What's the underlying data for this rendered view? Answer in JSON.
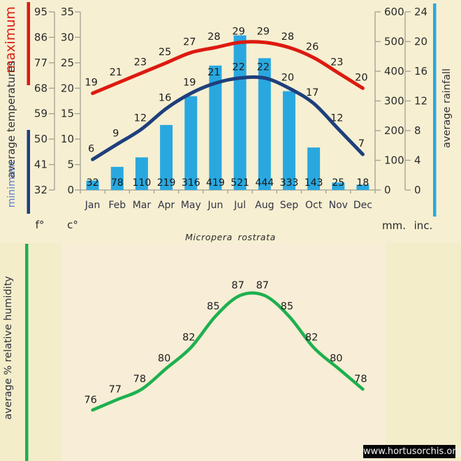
{
  "title": "Micropera rostrata",
  "watermark": "www.hortusorchis.org",
  "labels": {
    "maximum": "maximum",
    "average_temperatures": "average temperatures",
    "minimum": "minimum",
    "average_rainfall": "average rainfall",
    "humidity": "average % relative humidity",
    "fahrenheit_unit": "f°",
    "celsius_unit": "c°",
    "millimeters_unit": "mm.",
    "inches_unit": "inc."
  },
  "colors": {
    "background": "#f3edca",
    "top_panel": "#f6efd2",
    "humidity_panel": "#f8edd6",
    "max_line": "#dd1a10",
    "min_line": "#1e3f7d",
    "rain_bar": "#29a8e0",
    "humidity_line": "#1db04f",
    "axis": "#a29f93",
    "dark_text": "#2e2e38",
    "min_label_text": "#5b7fc4",
    "watermark_bg": "#060606",
    "watermark_text": "#f2f2f2"
  },
  "chart_data": [
    {
      "type": "line",
      "title": "average temperatures",
      "categories": [
        "Jan",
        "Feb",
        "Mar",
        "Apr",
        "May",
        "Jun",
        "Jul",
        "Aug",
        "Sep",
        "Oct",
        "Nov",
        "Dec"
      ],
      "series": [
        {
          "name": "maximum",
          "color_key": "max_line",
          "values": [
            19,
            21,
            23,
            25,
            27,
            28,
            29,
            29,
            28,
            26,
            23,
            20
          ]
        },
        {
          "name": "minimum",
          "color_key": "min_line",
          "values": [
            6,
            9,
            12,
            16,
            19,
            21,
            22,
            22,
            20,
            17,
            12,
            7
          ]
        }
      ],
      "ylim": [
        0,
        35
      ],
      "left_axis_celsius": [
        35,
        30,
        25,
        20,
        15,
        10,
        5,
        0
      ],
      "left_axis_fahrenheit": [
        95,
        86,
        77,
        68,
        59,
        50,
        41,
        32
      ],
      "legend_position": "left-rotated",
      "grid": false
    },
    {
      "type": "bar",
      "title": "average rainfall",
      "categories": [
        "Jan",
        "Feb",
        "Mar",
        "Apr",
        "May",
        "Jun",
        "Jul",
        "Aug",
        "Sep",
        "Oct",
        "Nov",
        "Dec"
      ],
      "values": [
        32,
        78,
        110,
        219,
        316,
        419,
        521,
        444,
        333,
        143,
        25,
        18
      ],
      "ylim": [
        0,
        600
      ],
      "right_axis_mm": [
        600,
        500,
        400,
        300,
        200,
        100,
        0
      ],
      "right_axis_inches": [
        24,
        20,
        16,
        12,
        8,
        4,
        0
      ],
      "legend_position": "right-rotated",
      "grid": false
    },
    {
      "type": "line",
      "title": "average % relative humidity",
      "categories": [
        "Jan",
        "Feb",
        "Mar",
        "Apr",
        "May",
        "Jun",
        "Jul",
        "Aug",
        "Sep",
        "Oct",
        "Nov",
        "Dec"
      ],
      "values": [
        76,
        77,
        78,
        80,
        82,
        85,
        87,
        87,
        85,
        82,
        80,
        78
      ],
      "legend_position": "left-rotated",
      "grid": false
    }
  ]
}
